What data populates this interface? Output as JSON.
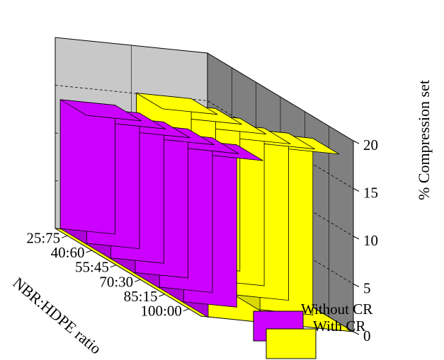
{
  "chart_data": {
    "type": "bar",
    "title": "",
    "categories": [
      "25:75",
      "40:60",
      "55:45",
      "70:30",
      "85:15",
      "100:00"
    ],
    "xlabel": "NBR:HDPE ratio",
    "ylabel": "% Compression set",
    "ylim": [
      0,
      20
    ],
    "yticks": [
      "0",
      "5",
      "10",
      "15",
      "20"
    ],
    "grid": true,
    "legend_position": "bottom-right",
    "series": [
      {
        "name": "Without CR",
        "values": [
          13.5,
          14.2,
          14.8,
          15.6,
          16.2,
          17.0
        ],
        "color": "#cc00ff"
      },
      {
        "name": "With CR",
        "values": [
          15.0,
          15.5,
          16.0,
          16.5,
          17.5,
          18.5
        ],
        "color": "#ffff00"
      }
    ]
  },
  "colors": {
    "wall_left": "#c8c8c8",
    "wall_back": "#808080",
    "floor": "#ffff00"
  }
}
